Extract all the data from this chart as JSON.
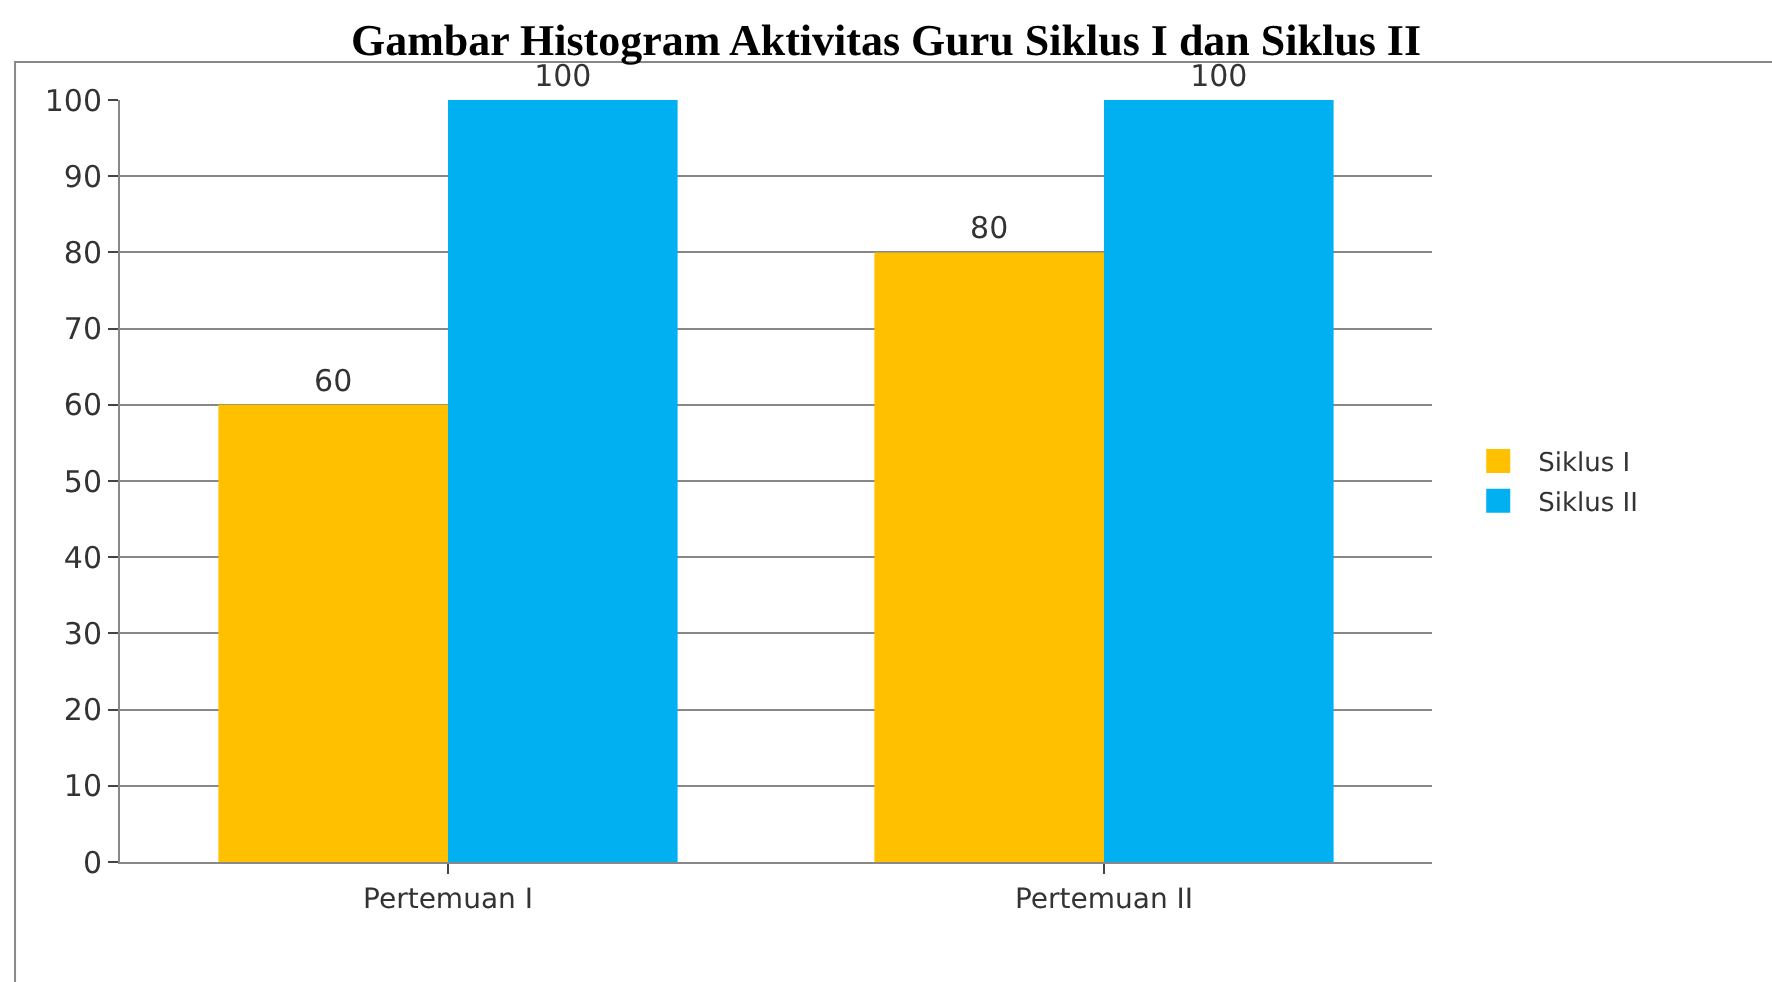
{
  "chart_data": {
    "type": "bar",
    "title": "Gambar Histogram Aktivitas Guru Siklus I dan Siklus II",
    "categories": [
      "Pertemuan I",
      "Pertemuan II"
    ],
    "series": [
      {
        "name": "Siklus I",
        "color": "#ffc000",
        "values": [
          60,
          80
        ]
      },
      {
        "name": "Siklus II",
        "color": "#00b0f0",
        "values": [
          100,
          100
        ]
      }
    ],
    "ylim": [
      0,
      100
    ],
    "yticks": [
      0,
      10,
      20,
      30,
      40,
      50,
      60,
      70,
      80,
      90,
      100
    ],
    "grid": "y",
    "legend": "right",
    "data_labels": true
  }
}
